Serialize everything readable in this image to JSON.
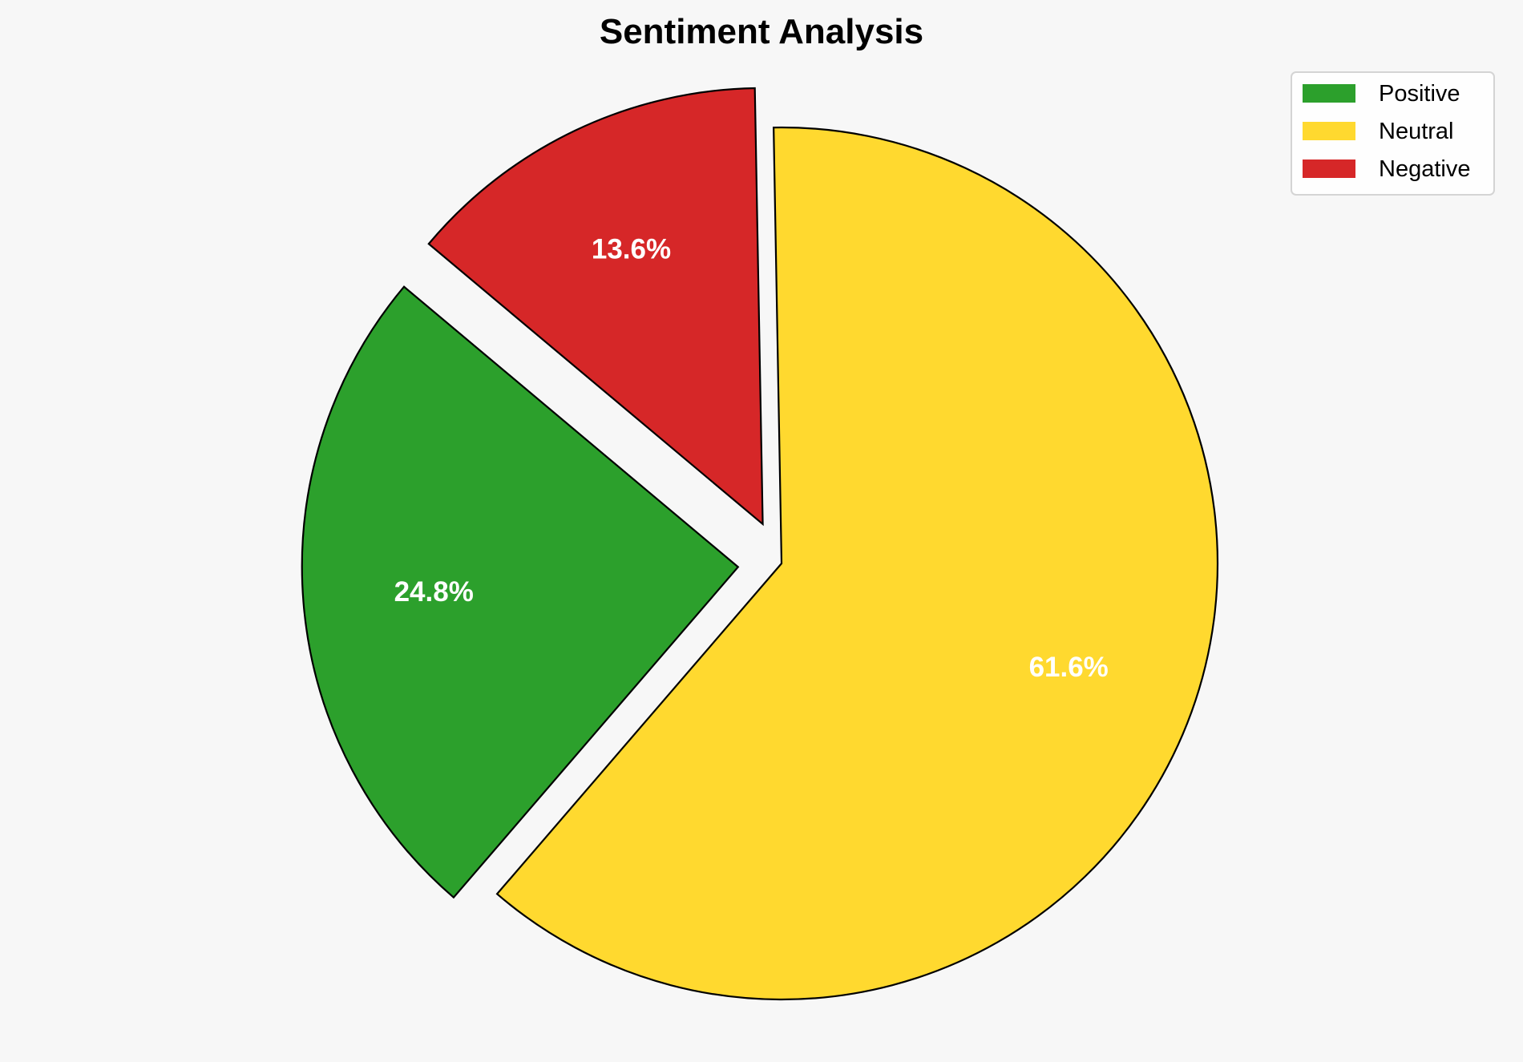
{
  "chart_data": {
    "type": "pie",
    "title": "Sentiment Analysis",
    "categories": [
      "Positive",
      "Neutral",
      "Negative"
    ],
    "values": [
      24.8,
      61.6,
      13.6
    ],
    "value_labels": [
      "24.8%",
      "61.6%",
      "13.6%"
    ],
    "colors": [
      "#2ca02c",
      "#ffd92f",
      "#d62728"
    ],
    "exploded": [
      true,
      false,
      true
    ],
    "start_angle_deg": 140,
    "direction": "counterclockwise",
    "legend": {
      "entries": [
        "Positive",
        "Neutral",
        "Negative"
      ],
      "placement": "top-right"
    },
    "background": "#f7f7f7"
  }
}
